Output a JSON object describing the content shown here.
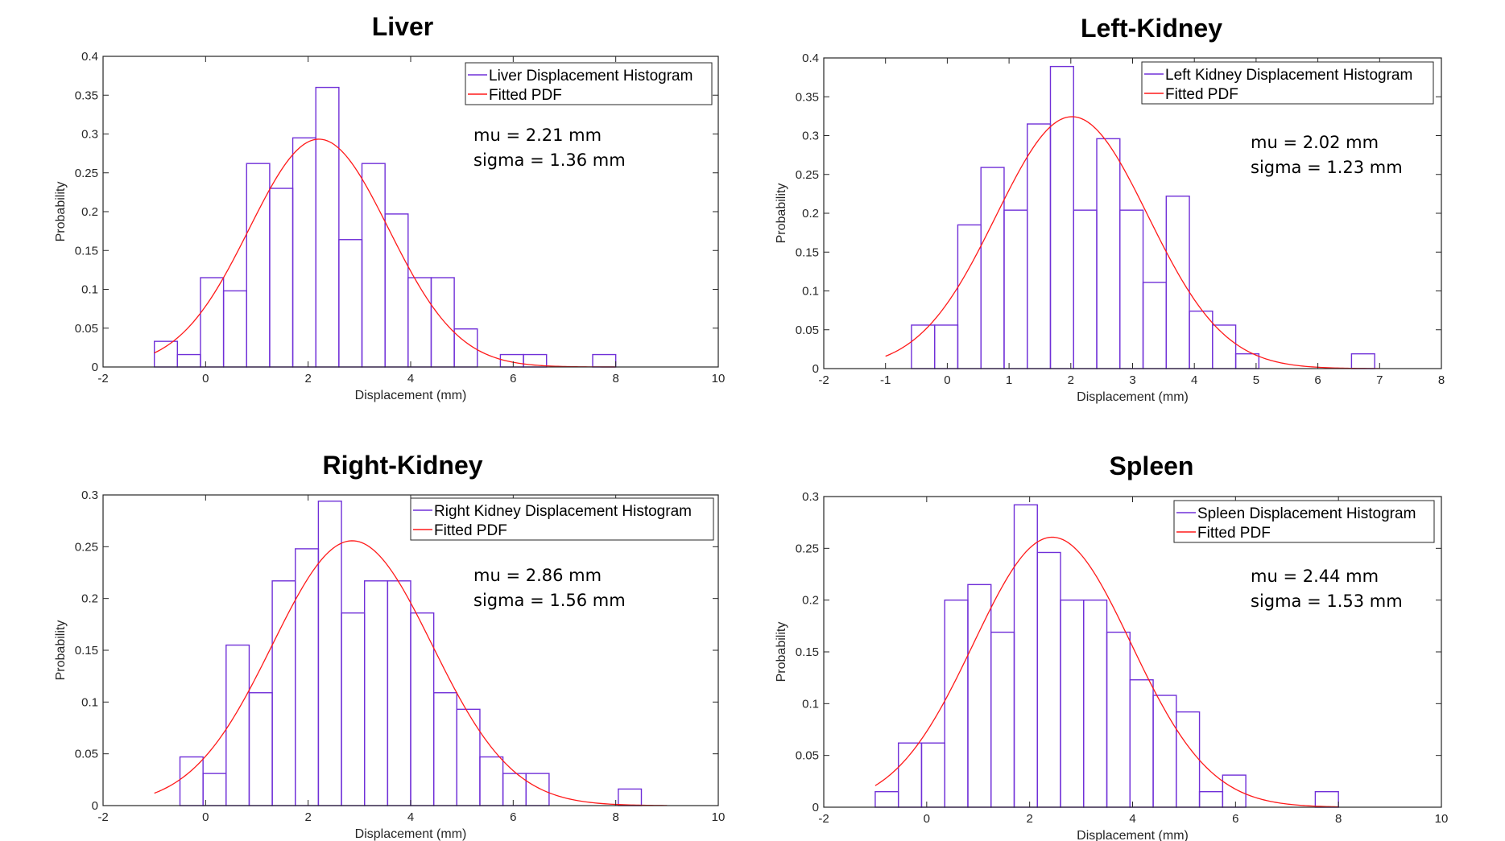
{
  "chart_data": [
    {
      "type": "bar",
      "title": "Liver",
      "xlabel": "Displacement (mm)",
      "ylabel": "Probability",
      "xlim": [
        -2,
        10
      ],
      "ylim": [
        0,
        0.4
      ],
      "xticks": [
        "-2",
        "0",
        "2",
        "4",
        "6",
        "8",
        "10"
      ],
      "yticks": [
        "0",
        "0.05",
        "0.1",
        "0.15",
        "0.2",
        "0.25",
        "0.3",
        "0.35",
        "0.4"
      ],
      "bins": {
        "start": -1.0,
        "width": 0.45
      },
      "values": [
        0.033,
        0.016,
        0.115,
        0.098,
        0.262,
        0.23,
        0.295,
        0.36,
        0.164,
        0.262,
        0.197,
        0.115,
        0.115,
        0.049,
        0,
        0.016,
        0.016,
        0,
        0,
        0.016
      ],
      "pdf": {
        "mu": 2.21,
        "sigma": 1.36,
        "scale": 1.0,
        "xmin": -1.0,
        "xmax": 8.0
      },
      "legend": [
        "Liver Displacement Histogram",
        "Fitted PDF"
      ],
      "legend_position": "top-right",
      "annotation": [
        "mu = 2.21 mm",
        "sigma = 1.36 mm"
      ],
      "colors": {
        "histogram": "#7030d8",
        "pdf": "#ff1a1a"
      }
    },
    {
      "type": "bar",
      "title": "Left-Kidney",
      "xlabel": "Displacement (mm)",
      "ylabel": "Probability",
      "xlim": [
        -2,
        8
      ],
      "ylim": [
        0,
        0.4
      ],
      "xticks": [
        "-2",
        "-1",
        "0",
        "1",
        "2",
        "3",
        "4",
        "5",
        "6",
        "7",
        "8"
      ],
      "yticks": [
        "0",
        "0.05",
        "0.1",
        "0.15",
        "0.2",
        "0.25",
        "0.3",
        "0.35",
        "0.4"
      ],
      "bins": {
        "start": -0.58,
        "width": 0.375
      },
      "values": [
        0.056,
        0.056,
        0.185,
        0.259,
        0.204,
        0.315,
        0.389,
        0.204,
        0.296,
        0.204,
        0.111,
        0.222,
        0.074,
        0.056,
        0.019,
        0,
        0,
        0,
        0,
        0.019
      ],
      "pdf": {
        "mu": 2.02,
        "sigma": 1.23,
        "scale": 1.0,
        "xmin": -1.0,
        "xmax": 7.0
      },
      "legend": [
        "Left Kidney Displacement Histogram",
        "Fitted PDF"
      ],
      "legend_position": "top-right",
      "annotation": [
        "mu = 2.02 mm",
        "sigma = 1.23 mm"
      ],
      "colors": {
        "histogram": "#7030d8",
        "pdf": "#ff1a1a"
      }
    },
    {
      "type": "bar",
      "title": "Right-Kidney",
      "xlabel": "Displacement (mm)",
      "ylabel": "Probability",
      "xlim": [
        -2,
        10
      ],
      "ylim": [
        0,
        0.3
      ],
      "xticks": [
        "-2",
        "0",
        "2",
        "4",
        "6",
        "8",
        "10"
      ],
      "yticks": [
        "0",
        "0.05",
        "0.1",
        "0.15",
        "0.2",
        "0.25",
        "0.3"
      ],
      "bins": {
        "start": -0.5,
        "width": 0.45
      },
      "values": [
        0.047,
        0.031,
        0.155,
        0.109,
        0.217,
        0.248,
        0.294,
        0.186,
        0.217,
        0.217,
        0.186,
        0.109,
        0.093,
        0.047,
        0.031,
        0.031,
        0,
        0,
        0,
        0.016
      ],
      "pdf": {
        "mu": 2.86,
        "sigma": 1.56,
        "scale": 1.0,
        "xmin": -1.0,
        "xmax": 9.0
      },
      "legend": [
        "Right Kidney Displacement Histogram",
        "Fitted PDF"
      ],
      "legend_position": "top-right",
      "annotation": [
        "mu = 2.86 mm",
        "sigma = 1.56 mm"
      ],
      "colors": {
        "histogram": "#7030d8",
        "pdf": "#ff1a1a"
      }
    },
    {
      "type": "bar",
      "title": "Spleen",
      "xlabel": "Displacement (mm)",
      "ylabel": "Probability",
      "xlim": [
        -2,
        10
      ],
      "ylim": [
        0,
        0.3
      ],
      "xticks": [
        "-2",
        "0",
        "2",
        "4",
        "6",
        "8",
        "10"
      ],
      "yticks": [
        "0",
        "0.05",
        "0.1",
        "0.15",
        "0.2",
        "0.25",
        "0.3"
      ],
      "bins": {
        "start": -1.0,
        "width": 0.45
      },
      "values": [
        0.015,
        0.062,
        0.062,
        0.2,
        0.215,
        0.169,
        0.292,
        0.246,
        0.2,
        0.2,
        0.169,
        0.123,
        0.108,
        0.092,
        0.015,
        0.031,
        0,
        0,
        0,
        0.015
      ],
      "pdf": {
        "mu": 2.44,
        "sigma": 1.53,
        "scale": 1.0,
        "xmin": -1.0,
        "xmax": 8.0
      },
      "legend": [
        "Spleen Displacement Histogram",
        "Fitted PDF"
      ],
      "legend_position": "top-right",
      "annotation": [
        "mu = 2.44 mm",
        "sigma = 1.53 mm"
      ],
      "colors": {
        "histogram": "#7030d8",
        "pdf": "#ff1a1a"
      }
    }
  ]
}
